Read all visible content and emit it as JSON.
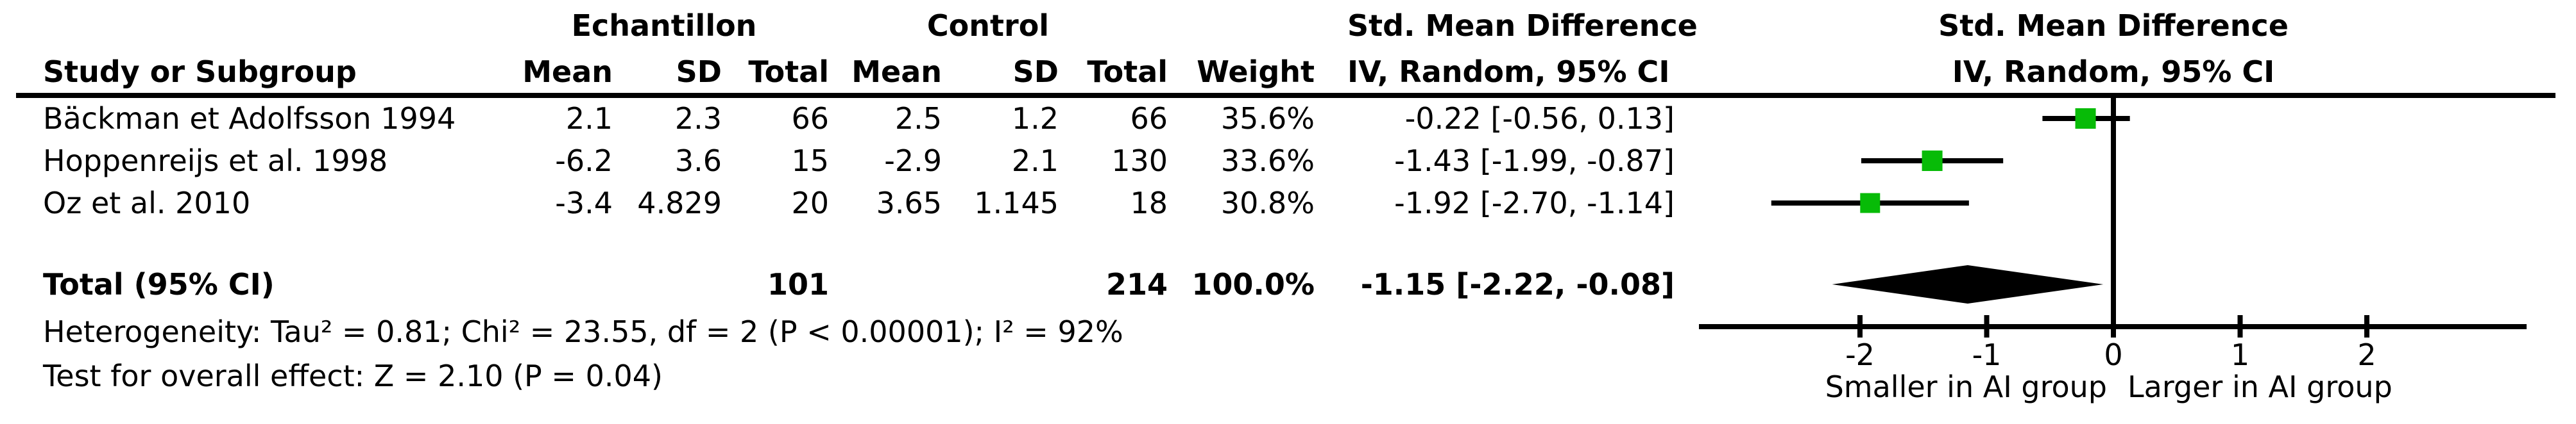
{
  "table": {
    "group1_header": "Echantillon",
    "group2_header": "Control",
    "smd_col": {
      "line1": "Std. Mean Difference",
      "line2": "IV, Random, 95% CI"
    },
    "plot_col": {
      "line1": "Std. Mean Difference",
      "line2": "IV, Random, 95% CI"
    },
    "col_study": "Study or Subgroup",
    "col_mean": "Mean",
    "col_sd": "SD",
    "col_total": "Total",
    "col_weight": "Weight",
    "rows": [
      {
        "study": "Bäckman et Adolfsson 1994",
        "e_mean": "2.1",
        "e_sd": "2.3",
        "e_total": "66",
        "c_mean": "2.5",
        "c_sd": "1.2",
        "c_total": "66",
        "weight": "35.6%",
        "smd_ci": "-0.22 [-0.56, 0.13]"
      },
      {
        "study": "Hoppenreijs et al. 1998",
        "e_mean": "-6.2",
        "e_sd": "3.6",
        "e_total": "15",
        "c_mean": "-2.9",
        "c_sd": "2.1",
        "c_total": "130",
        "weight": "33.6%",
        "smd_ci": "-1.43 [-1.99, -0.87]"
      },
      {
        "study": "Oz et al. 2010",
        "e_mean": "-3.4",
        "e_sd": "4.829",
        "e_total": "20",
        "c_mean": "3.65",
        "c_sd": "1.145",
        "c_total": "18",
        "weight": "30.8%",
        "smd_ci": "-1.92 [-2.70, -1.14]"
      }
    ],
    "total": {
      "label": "Total (95% CI)",
      "e_total": "101",
      "c_total": "214",
      "weight": "100.0%",
      "smd_ci": "-1.15 [-2.22, -0.08]"
    },
    "heterogeneity": "Heterogeneity: Tau² = 0.81; Chi² = 23.55, df = 2 (P < 0.00001); I² = 92%",
    "overall_effect": "Test for overall effect: Z = 2.10 (P = 0.04)"
  },
  "chart_data": {
    "type": "forest",
    "effect_measure": "Std. Mean Difference",
    "model": "IV, Random, 95% CI",
    "studies": [
      {
        "name": "Bäckman et Adolfsson 1994",
        "exp_mean": 2.1,
        "exp_sd": 2.3,
        "exp_total": 66,
        "ctrl_mean": 2.5,
        "ctrl_sd": 1.2,
        "ctrl_total": 66,
        "weight_pct": 35.6,
        "smd": -0.22,
        "ci_low": -0.56,
        "ci_high": 0.13
      },
      {
        "name": "Hoppenreijs et al. 1998",
        "exp_mean": -6.2,
        "exp_sd": 3.6,
        "exp_total": 15,
        "ctrl_mean": -2.9,
        "ctrl_sd": 2.1,
        "ctrl_total": 130,
        "weight_pct": 33.6,
        "smd": -1.43,
        "ci_low": -1.99,
        "ci_high": -0.87
      },
      {
        "name": "Oz et al. 2010",
        "exp_mean": -3.4,
        "exp_sd": 4.829,
        "exp_total": 20,
        "ctrl_mean": 3.65,
        "ctrl_sd": 1.145,
        "ctrl_total": 18,
        "weight_pct": 30.8,
        "smd": -1.92,
        "ci_low": -2.7,
        "ci_high": -1.14
      }
    ],
    "total": {
      "label": "Total (95% CI)",
      "exp_total": 101,
      "ctrl_total": 214,
      "weight_pct": 100.0,
      "smd": -1.15,
      "ci_low": -2.22,
      "ci_high": -0.08
    },
    "heterogeneity": {
      "tau2": 0.81,
      "chi2": 23.55,
      "df": 2,
      "p": "< 0.00001",
      "i2_pct": 92
    },
    "overall_effect": {
      "z": 2.1,
      "p": 0.04
    },
    "axis": {
      "ticks": [
        -2,
        -1,
        0,
        1,
        2
      ],
      "range": [
        -3.27,
        3.27
      ],
      "label_left": "Smaller in AI group",
      "label_right": "Larger in AI group"
    },
    "marker_color": "#07bb07",
    "line_color": "#000000"
  }
}
